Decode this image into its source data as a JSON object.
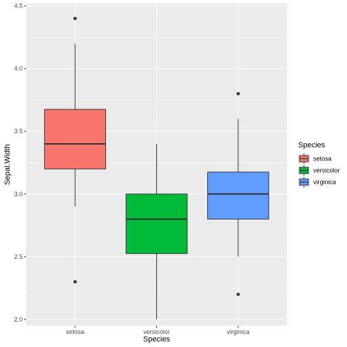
{
  "chart_data": {
    "type": "boxplot",
    "xlabel": "Species",
    "ylabel": "Sepal.Width",
    "ylim": [
      1.95,
      4.52
    ],
    "yticks": [
      2.0,
      2.5,
      3.0,
      3.5,
      4.0,
      4.5
    ],
    "ytick_labels": [
      "2.0",
      "2.5",
      "3.0",
      "3.5",
      "4.0",
      "4.5"
    ],
    "categories": [
      "setosa",
      "versicolor",
      "virginica"
    ],
    "grid": true,
    "legend": {
      "title": "Species",
      "placement": "right",
      "entries": [
        "setosa",
        "versicolor",
        "virginica"
      ]
    },
    "boxes": [
      {
        "category": "setosa",
        "color": "#F8766D",
        "min": 2.9,
        "q1": 3.2,
        "median": 3.4,
        "q3": 3.675,
        "max": 4.2,
        "outliers": [
          4.4,
          2.3
        ]
      },
      {
        "category": "versicolor",
        "color": "#00BA38",
        "min": 2.0,
        "q1": 2.525,
        "median": 2.8,
        "q3": 3.0,
        "max": 3.4,
        "outliers": []
      },
      {
        "category": "virginica",
        "color": "#619CFF",
        "min": 2.5,
        "q1": 2.8,
        "median": 3.0,
        "q3": 3.175,
        "max": 3.6,
        "outliers": [
          3.8,
          2.2
        ]
      }
    ]
  }
}
